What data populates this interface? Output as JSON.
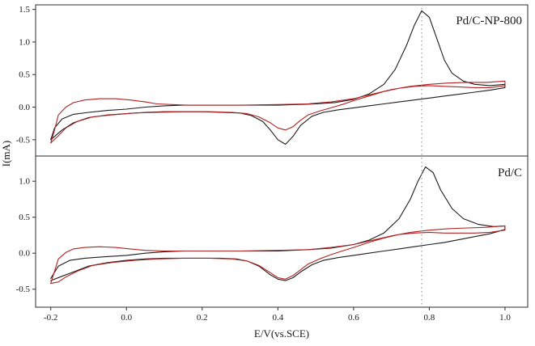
{
  "figure": {
    "xlabel": "E/V(vs.SCE)",
    "ylabel": "I(mA)",
    "background": "#ffffff",
    "axis_color": "#2b2b2b",
    "vline_x": 0.78,
    "vline_color": "#8a8a8a"
  },
  "chart_data": [
    {
      "type": "line",
      "title": "Pd/C-NP-800",
      "xlabel": "E/V(vs.SCE)",
      "ylabel": "I(mA)",
      "xlim": [
        -0.24,
        1.06
      ],
      "ylim": [
        -0.75,
        1.57
      ],
      "xticks": [
        "-0.2",
        "0.0",
        "0.2",
        "0.4",
        "0.6",
        "0.8",
        "1.0"
      ],
      "yticks": [
        "-0.5",
        "0.0",
        "0.5",
        "1.0",
        "1.5"
      ],
      "grid": false,
      "legend": "none",
      "annotations": [
        {
          "type": "vline-dotted",
          "x": 0.78
        }
      ],
      "series": [
        {
          "name": "black-cv-loop",
          "color": "#1c1c1c",
          "points": [
            [
              -0.2,
              -0.5
            ],
            [
              -0.19,
              -0.32
            ],
            [
              -0.17,
              -0.18
            ],
            [
              -0.14,
              -0.11
            ],
            [
              -0.1,
              -0.08
            ],
            [
              -0.05,
              -0.05
            ],
            [
              0.0,
              -0.03
            ],
            [
              0.05,
              0.0
            ],
            [
              0.1,
              0.02
            ],
            [
              0.15,
              0.03
            ],
            [
              0.2,
              0.03
            ],
            [
              0.3,
              0.03
            ],
            [
              0.4,
              0.03
            ],
            [
              0.5,
              0.05
            ],
            [
              0.55,
              0.07
            ],
            [
              0.6,
              0.12
            ],
            [
              0.64,
              0.2
            ],
            [
              0.68,
              0.35
            ],
            [
              0.71,
              0.58
            ],
            [
              0.74,
              0.95
            ],
            [
              0.76,
              1.25
            ],
            [
              0.78,
              1.48
            ],
            [
              0.8,
              1.38
            ],
            [
              0.82,
              1.05
            ],
            [
              0.84,
              0.72
            ],
            [
              0.86,
              0.52
            ],
            [
              0.89,
              0.4
            ],
            [
              0.92,
              0.35
            ],
            [
              0.96,
              0.33
            ],
            [
              1.0,
              0.35
            ],
            [
              1.0,
              0.3
            ],
            [
              0.96,
              0.26
            ],
            [
              0.92,
              0.23
            ],
            [
              0.88,
              0.2
            ],
            [
              0.84,
              0.17
            ],
            [
              0.8,
              0.14
            ],
            [
              0.76,
              0.11
            ],
            [
              0.72,
              0.08
            ],
            [
              0.68,
              0.05
            ],
            [
              0.64,
              0.02
            ],
            [
              0.6,
              -0.01
            ],
            [
              0.56,
              -0.04
            ],
            [
              0.52,
              -0.08
            ],
            [
              0.49,
              -0.14
            ],
            [
              0.46,
              -0.28
            ],
            [
              0.44,
              -0.45
            ],
            [
              0.42,
              -0.57
            ],
            [
              0.4,
              -0.5
            ],
            [
              0.38,
              -0.35
            ],
            [
              0.36,
              -0.22
            ],
            [
              0.33,
              -0.13
            ],
            [
              0.3,
              -0.09
            ],
            [
              0.25,
              -0.08
            ],
            [
              0.2,
              -0.07
            ],
            [
              0.15,
              -0.07
            ],
            [
              0.1,
              -0.07
            ],
            [
              0.05,
              -0.08
            ],
            [
              0.0,
              -0.1
            ],
            [
              -0.05,
              -0.12
            ],
            [
              -0.1,
              -0.16
            ],
            [
              -0.14,
              -0.24
            ],
            [
              -0.17,
              -0.35
            ],
            [
              -0.2,
              -0.5
            ]
          ]
        },
        {
          "name": "red-cv-loop",
          "color": "#b22222",
          "points": [
            [
              -0.2,
              -0.55
            ],
            [
              -0.19,
              -0.35
            ],
            [
              -0.18,
              -0.12
            ],
            [
              -0.16,
              0.0
            ],
            [
              -0.14,
              0.07
            ],
            [
              -0.11,
              0.11
            ],
            [
              -0.07,
              0.13
            ],
            [
              -0.03,
              0.13
            ],
            [
              0.01,
              0.11
            ],
            [
              0.05,
              0.08
            ],
            [
              0.08,
              0.05
            ],
            [
              0.12,
              0.04
            ],
            [
              0.16,
              0.03
            ],
            [
              0.2,
              0.03
            ],
            [
              0.3,
              0.03
            ],
            [
              0.4,
              0.04
            ],
            [
              0.48,
              0.05
            ],
            [
              0.54,
              0.08
            ],
            [
              0.6,
              0.13
            ],
            [
              0.65,
              0.2
            ],
            [
              0.7,
              0.27
            ],
            [
              0.75,
              0.32
            ],
            [
              0.8,
              0.35
            ],
            [
              0.85,
              0.37
            ],
            [
              0.9,
              0.38
            ],
            [
              0.95,
              0.38
            ],
            [
              1.0,
              0.4
            ],
            [
              1.0,
              0.33
            ],
            [
              0.96,
              0.3
            ],
            [
              0.92,
              0.3
            ],
            [
              0.88,
              0.31
            ],
            [
              0.84,
              0.32
            ],
            [
              0.8,
              0.33
            ],
            [
              0.76,
              0.32
            ],
            [
              0.72,
              0.29
            ],
            [
              0.68,
              0.24
            ],
            [
              0.64,
              0.17
            ],
            [
              0.6,
              0.1
            ],
            [
              0.57,
              0.04
            ],
            [
              0.54,
              -0.01
            ],
            [
              0.51,
              -0.06
            ],
            [
              0.48,
              -0.12
            ],
            [
              0.46,
              -0.2
            ],
            [
              0.44,
              -0.3
            ],
            [
              0.42,
              -0.35
            ],
            [
              0.4,
              -0.32
            ],
            [
              0.38,
              -0.24
            ],
            [
              0.35,
              -0.15
            ],
            [
              0.32,
              -0.1
            ],
            [
              0.28,
              -0.08
            ],
            [
              0.22,
              -0.07
            ],
            [
              0.15,
              -0.07
            ],
            [
              0.08,
              -0.08
            ],
            [
              0.02,
              -0.09
            ],
            [
              -0.04,
              -0.12
            ],
            [
              -0.09,
              -0.15
            ],
            [
              -0.13,
              -0.22
            ],
            [
              -0.16,
              -0.32
            ],
            [
              -0.18,
              -0.44
            ],
            [
              -0.2,
              -0.55
            ]
          ]
        }
      ]
    },
    {
      "type": "line",
      "title": "Pd/C",
      "xlabel": "E/V(vs.SCE)",
      "ylabel": "I(mA)",
      "xlim": [
        -0.24,
        1.06
      ],
      "ylim": [
        -0.75,
        1.35
      ],
      "xticks": [
        "-0.2",
        "0.0",
        "0.2",
        "0.4",
        "0.6",
        "0.8",
        "1.0"
      ],
      "yticks": [
        "-0.5",
        "0.0",
        "0.5",
        "1.0"
      ],
      "grid": false,
      "legend": "none",
      "annotations": [
        {
          "type": "vline-dotted",
          "x": 0.78
        }
      ],
      "series": [
        {
          "name": "black-cv-loop",
          "color": "#1c1c1c",
          "points": [
            [
              -0.2,
              -0.35
            ],
            [
              -0.18,
              -0.18
            ],
            [
              -0.15,
              -0.1
            ],
            [
              -0.11,
              -0.07
            ],
            [
              -0.06,
              -0.05
            ],
            [
              0.0,
              -0.03
            ],
            [
              0.05,
              0.0
            ],
            [
              0.1,
              0.02
            ],
            [
              0.15,
              0.03
            ],
            [
              0.2,
              0.03
            ],
            [
              0.3,
              0.03
            ],
            [
              0.4,
              0.03
            ],
            [
              0.48,
              0.05
            ],
            [
              0.54,
              0.07
            ],
            [
              0.6,
              0.12
            ],
            [
              0.64,
              0.18
            ],
            [
              0.68,
              0.28
            ],
            [
              0.72,
              0.48
            ],
            [
              0.75,
              0.75
            ],
            [
              0.77,
              1.0
            ],
            [
              0.79,
              1.2
            ],
            [
              0.81,
              1.12
            ],
            [
              0.83,
              0.88
            ],
            [
              0.86,
              0.62
            ],
            [
              0.89,
              0.48
            ],
            [
              0.93,
              0.4
            ],
            [
              0.97,
              0.37
            ],
            [
              1.0,
              0.38
            ],
            [
              1.0,
              0.33
            ],
            [
              0.96,
              0.27
            ],
            [
              0.92,
              0.23
            ],
            [
              0.88,
              0.19
            ],
            [
              0.84,
              0.15
            ],
            [
              0.8,
              0.12
            ],
            [
              0.76,
              0.09
            ],
            [
              0.72,
              0.06
            ],
            [
              0.68,
              0.03
            ],
            [
              0.64,
              0.0
            ],
            [
              0.6,
              -0.03
            ],
            [
              0.56,
              -0.06
            ],
            [
              0.52,
              -0.1
            ],
            [
              0.49,
              -0.16
            ],
            [
              0.46,
              -0.26
            ],
            [
              0.44,
              -0.34
            ],
            [
              0.42,
              -0.38
            ],
            [
              0.4,
              -0.36
            ],
            [
              0.38,
              -0.3
            ],
            [
              0.35,
              -0.18
            ],
            [
              0.32,
              -0.11
            ],
            [
              0.29,
              -0.08
            ],
            [
              0.25,
              -0.07
            ],
            [
              0.2,
              -0.07
            ],
            [
              0.15,
              -0.07
            ],
            [
              0.1,
              -0.07
            ],
            [
              0.05,
              -0.08
            ],
            [
              0.0,
              -0.1
            ],
            [
              -0.05,
              -0.13
            ],
            [
              -0.1,
              -0.18
            ],
            [
              -0.14,
              -0.26
            ],
            [
              -0.17,
              -0.32
            ],
            [
              -0.2,
              -0.38
            ]
          ]
        },
        {
          "name": "red-cv-loop",
          "color": "#b22222",
          "points": [
            [
              -0.2,
              -0.42
            ],
            [
              -0.19,
              -0.25
            ],
            [
              -0.18,
              -0.08
            ],
            [
              -0.16,
              0.01
            ],
            [
              -0.14,
              0.06
            ],
            [
              -0.11,
              0.08
            ],
            [
              -0.07,
              0.09
            ],
            [
              -0.03,
              0.08
            ],
            [
              0.01,
              0.06
            ],
            [
              0.05,
              0.04
            ],
            [
              0.1,
              0.03
            ],
            [
              0.16,
              0.03
            ],
            [
              0.2,
              0.03
            ],
            [
              0.3,
              0.03
            ],
            [
              0.4,
              0.04
            ],
            [
              0.48,
              0.05
            ],
            [
              0.54,
              0.08
            ],
            [
              0.6,
              0.12
            ],
            [
              0.65,
              0.18
            ],
            [
              0.7,
              0.24
            ],
            [
              0.75,
              0.29
            ],
            [
              0.8,
              0.32
            ],
            [
              0.85,
              0.34
            ],
            [
              0.9,
              0.35
            ],
            [
              0.95,
              0.36
            ],
            [
              1.0,
              0.38
            ],
            [
              1.0,
              0.32
            ],
            [
              0.96,
              0.29
            ],
            [
              0.92,
              0.28
            ],
            [
              0.88,
              0.28
            ],
            [
              0.84,
              0.28
            ],
            [
              0.8,
              0.29
            ],
            [
              0.76,
              0.28
            ],
            [
              0.72,
              0.26
            ],
            [
              0.68,
              0.21
            ],
            [
              0.64,
              0.15
            ],
            [
              0.6,
              0.08
            ],
            [
              0.57,
              0.03
            ],
            [
              0.54,
              -0.02
            ],
            [
              0.51,
              -0.08
            ],
            [
              0.48,
              -0.15
            ],
            [
              0.46,
              -0.23
            ],
            [
              0.44,
              -0.31
            ],
            [
              0.42,
              -0.36
            ],
            [
              0.4,
              -0.34
            ],
            [
              0.38,
              -0.27
            ],
            [
              0.35,
              -0.17
            ],
            [
              0.32,
              -0.11
            ],
            [
              0.28,
              -0.08
            ],
            [
              0.22,
              -0.07
            ],
            [
              0.15,
              -0.07
            ],
            [
              0.08,
              -0.08
            ],
            [
              0.02,
              -0.1
            ],
            [
              -0.04,
              -0.13
            ],
            [
              -0.09,
              -0.17
            ],
            [
              -0.13,
              -0.25
            ],
            [
              -0.16,
              -0.33
            ],
            [
              -0.18,
              -0.4
            ],
            [
              -0.2,
              -0.42
            ]
          ]
        }
      ]
    }
  ]
}
